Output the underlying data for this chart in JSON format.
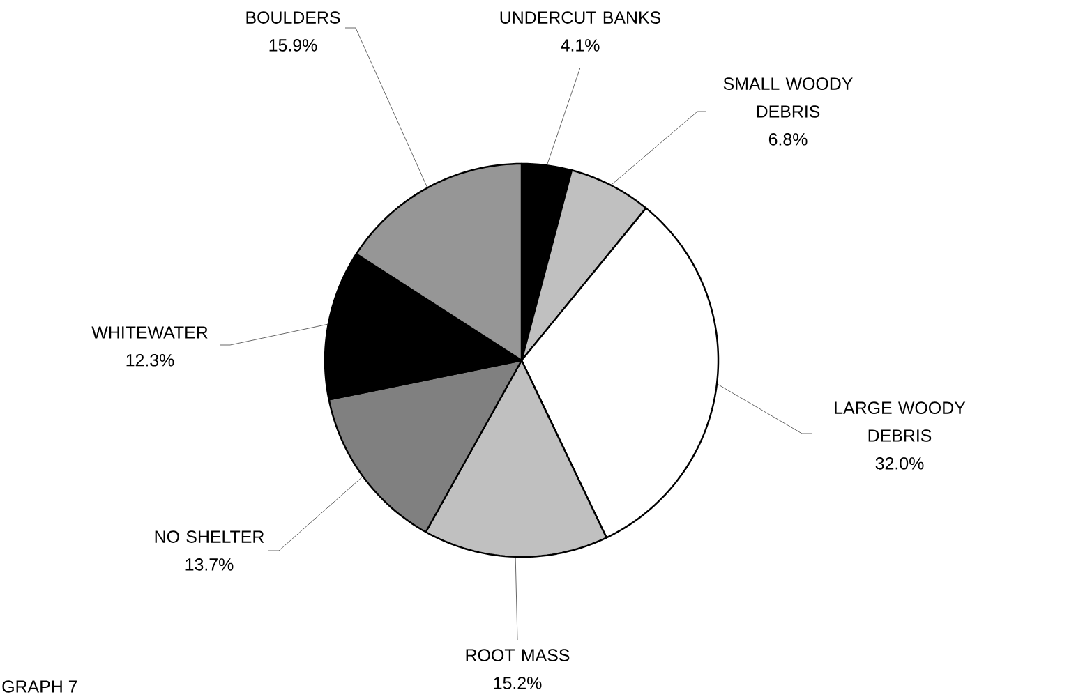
{
  "chart_data": {
    "type": "pie",
    "categories": [
      "UNDERCUT BANKS",
      "SMALL WOODY DEBRIS",
      "LARGE WOODY DEBRIS",
      "ROOT MASS",
      "NO SHELTER",
      "WHITEWATER",
      "BOULDERS"
    ],
    "values": [
      4.1,
      6.8,
      32.0,
      15.2,
      13.7,
      12.3,
      15.9
    ],
    "value_labels": [
      "4.1%",
      "6.8%",
      "32.0%",
      "15.2%",
      "13.7%",
      "12.3%",
      "15.9%"
    ],
    "colors": [
      "#000000",
      "#c0c0c0",
      "#ffffff",
      "#c0c0c0",
      "#808080",
      "#000000",
      "#969696"
    ],
    "annotations": [
      "GRAPH 7"
    ]
  }
}
